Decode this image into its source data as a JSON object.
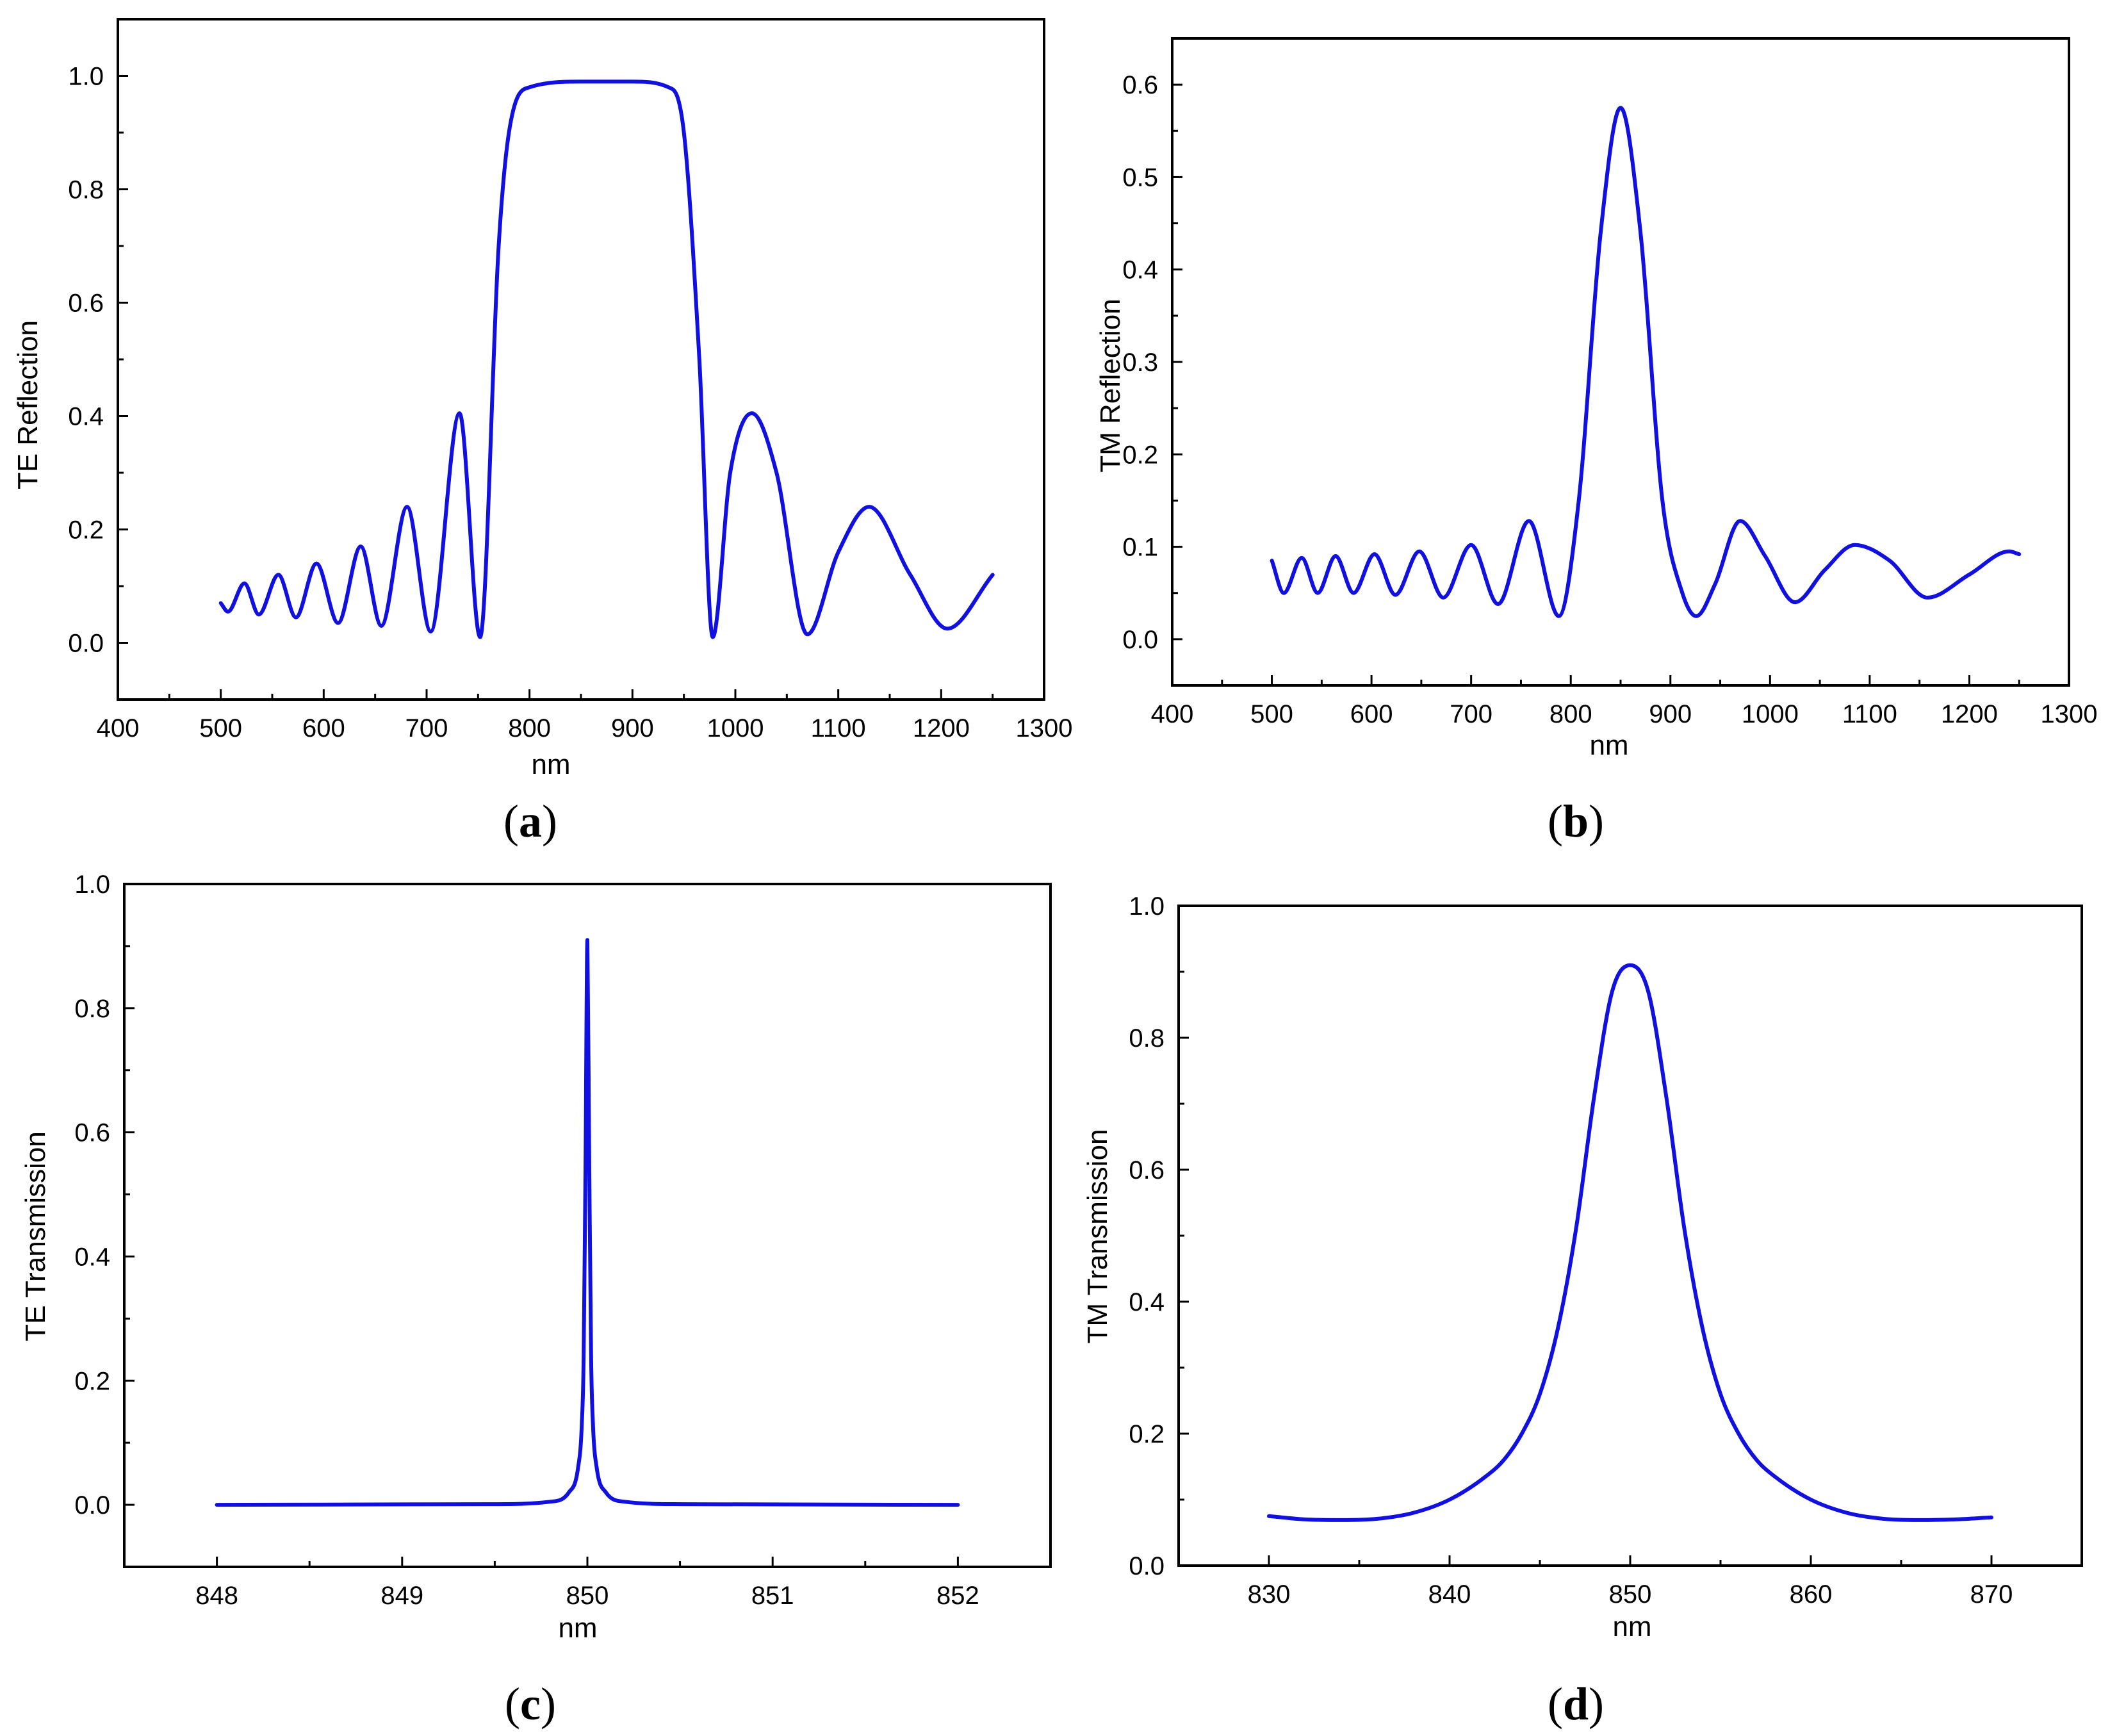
{
  "figure": {
    "panel_labels": [
      {
        "open": "(",
        "letter": "a",
        "close": ")"
      },
      {
        "open": "(",
        "letter": "b",
        "close": ")"
      },
      {
        "open": "(",
        "letter": "c",
        "close": ")"
      },
      {
        "open": "(",
        "letter": "d",
        "close": ")"
      }
    ],
    "curve_color": "#1010e0"
  },
  "chart_data": [
    {
      "id": "a",
      "type": "line",
      "ylabel": "TE Reflection",
      "xlabel": "nm",
      "xlim": [
        400,
        1300
      ],
      "ylim": [
        -0.1,
        1.1
      ],
      "xticks": [
        400,
        500,
        600,
        700,
        800,
        900,
        1000,
        1100,
        1200,
        1300
      ],
      "xtick_labels": [
        "400",
        "500",
        "600",
        "700",
        "800",
        "900",
        "1000",
        "1100",
        "1200",
        "1300"
      ],
      "yticks": [
        0.0,
        0.2,
        0.4,
        0.6,
        0.8,
        1.0
      ],
      "ytick_labels": [
        "0.0",
        "0.2",
        "0.4",
        "0.6",
        "0.8",
        "1.0"
      ],
      "series": [
        {
          "name": "TE Reflection",
          "x": [
            500,
            507,
            523,
            537,
            556,
            573,
            593,
            614,
            636,
            656,
            681,
            704,
            732,
            752,
            770,
            780,
            800,
            850,
            900,
            935,
            950,
            965,
            978,
            995,
            1016,
            1040,
            1070,
            1100,
            1130,
            1170,
            1206,
            1250
          ],
          "y": [
            0.07,
            0.055,
            0.105,
            0.05,
            0.12,
            0.045,
            0.14,
            0.035,
            0.17,
            0.03,
            0.24,
            0.02,
            0.405,
            0.01,
            0.7,
            0.9,
            0.98,
            0.99,
            0.99,
            0.98,
            0.9,
            0.5,
            0.01,
            0.3,
            0.405,
            0.3,
            0.015,
            0.16,
            0.24,
            0.12,
            0.025,
            0.12
          ]
        }
      ]
    },
    {
      "id": "b",
      "type": "line",
      "ylabel": "TM Reflection",
      "xlabel": "nm",
      "xlim": [
        400,
        1300
      ],
      "ylim": [
        -0.05,
        0.65
      ],
      "xticks": [
        400,
        500,
        600,
        700,
        800,
        900,
        1000,
        1100,
        1200,
        1300
      ],
      "xtick_labels": [
        "400",
        "500",
        "600",
        "700",
        "800",
        "900",
        "1000",
        "1100",
        "1200",
        "1300"
      ],
      "yticks": [
        0.0,
        0.1,
        0.2,
        0.3,
        0.4,
        0.5,
        0.6
      ],
      "ytick_labels": [
        "0.0",
        "0.1",
        "0.2",
        "0.3",
        "0.4",
        "0.5",
        "0.6"
      ],
      "series": [
        {
          "name": "TM Reflection",
          "x": [
            500,
            512,
            530,
            546,
            564,
            582,
            603,
            624,
            648,
            672,
            700,
            727,
            758,
            788,
            808,
            830,
            850,
            870,
            892,
            912,
            926,
            945,
            970,
            995,
            1025,
            1055,
            1085,
            1120,
            1158,
            1200,
            1240,
            1250
          ],
          "y": [
            0.085,
            0.05,
            0.088,
            0.05,
            0.09,
            0.05,
            0.092,
            0.048,
            0.095,
            0.045,
            0.102,
            0.038,
            0.128,
            0.025,
            0.15,
            0.44,
            0.575,
            0.44,
            0.15,
            0.05,
            0.025,
            0.06,
            0.128,
            0.09,
            0.04,
            0.075,
            0.102,
            0.085,
            0.045,
            0.07,
            0.095,
            0.092
          ]
        }
      ]
    },
    {
      "id": "c",
      "type": "line",
      "ylabel": "TE Transmission",
      "xlabel": "nm",
      "xlim": [
        847.5,
        852.5
      ],
      "ylim": [
        -0.1,
        1.0
      ],
      "xticks": [
        848,
        849,
        850,
        851,
        852
      ],
      "xtick_labels": [
        "848",
        "849",
        "850",
        "851",
        "852"
      ],
      "yticks": [
        0.0,
        0.2,
        0.4,
        0.6,
        0.8,
        1.0
      ],
      "ytick_labels": [
        "0.0",
        "0.2",
        "0.4",
        "0.6",
        "0.8",
        "1.0"
      ],
      "series": [
        {
          "name": "TE Transmission",
          "x": [
            848,
            849.5,
            849.8,
            849.9,
            849.95,
            849.97,
            849.98,
            849.99,
            850,
            850.01,
            850.02,
            850.03,
            850.05,
            850.1,
            850.2,
            850.5,
            852
          ],
          "y": [
            0,
            0.001,
            0.005,
            0.02,
            0.06,
            0.13,
            0.24,
            0.55,
            0.91,
            0.55,
            0.24,
            0.13,
            0.06,
            0.02,
            0.005,
            0.001,
            0
          ]
        }
      ]
    },
    {
      "id": "d",
      "type": "line",
      "ylabel": "TM Transmission",
      "xlabel": "nm",
      "xlim": [
        825,
        875
      ],
      "ylim": [
        0.0,
        1.0
      ],
      "xticks": [
        830,
        840,
        850,
        860,
        870
      ],
      "xtick_labels": [
        "830",
        "840",
        "850",
        "860",
        "870"
      ],
      "yticks": [
        0.0,
        0.2,
        0.4,
        0.6,
        0.8,
        1.0
      ],
      "ytick_labels": [
        "0.0",
        "0.2",
        "0.4",
        "0.6",
        "0.8",
        "1.0"
      ],
      "series": [
        {
          "name": "TM Transmission",
          "x": [
            830,
            832,
            834,
            836,
            838,
            840,
            842,
            843,
            844,
            845,
            846,
            847,
            848,
            849,
            850,
            851,
            852,
            853,
            854,
            855,
            856,
            857,
            858,
            860,
            862,
            864,
            866,
            868,
            870
          ],
          "y": [
            0.075,
            0.07,
            0.069,
            0.071,
            0.08,
            0.1,
            0.135,
            0.16,
            0.2,
            0.26,
            0.36,
            0.51,
            0.71,
            0.87,
            0.91,
            0.87,
            0.71,
            0.51,
            0.36,
            0.26,
            0.2,
            0.16,
            0.135,
            0.1,
            0.08,
            0.071,
            0.069,
            0.07,
            0.073
          ]
        }
      ]
    }
  ]
}
